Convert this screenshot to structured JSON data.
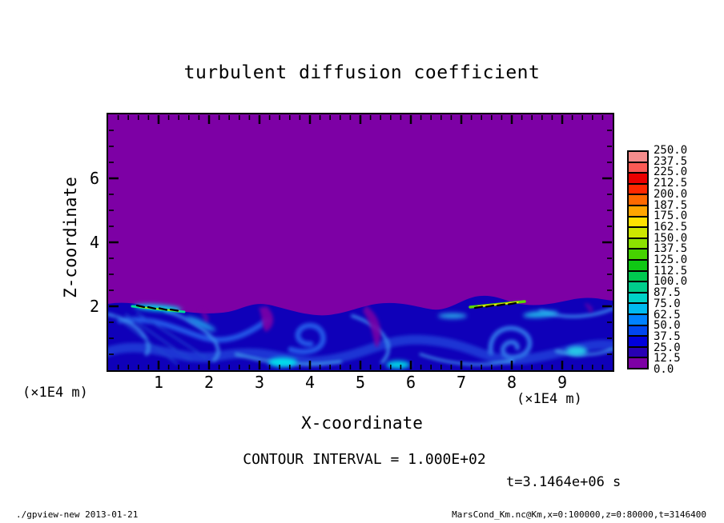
{
  "title": "turbulent diffusion coefficient",
  "chart_data": {
    "type": "heatmap",
    "title": "turbulent diffusion coefficient",
    "xlabel": "X-coordinate",
    "ylabel": "Z-coordinate",
    "x_units": "(×1E4 m)",
    "y_units": "(×1E4 m)",
    "xlim": [
      0,
      10
    ],
    "ylim": [
      0,
      8
    ],
    "x_major_ticks": [
      1,
      2,
      3,
      4,
      5,
      6,
      7,
      8,
      9
    ],
    "x_minor_step": 0.2,
    "y_major_ticks": [
      2,
      4,
      6
    ],
    "y_minor_step": 0.5,
    "grid": false,
    "contour_interval_label": "CONTOUR INTERVAL = 1.000E+02",
    "contour_interval": 100.0,
    "time_label": "t=3.1464e+06 s",
    "time_seconds": 3146400,
    "colorbar": {
      "levels": [
        "0.0",
        "12.5",
        "25.0",
        "37.5",
        "50.0",
        "62.5",
        "75.0",
        "87.5",
        "100.0",
        "112.5",
        "125.0",
        "137.5",
        "150.0",
        "162.5",
        "175.0",
        "187.5",
        "200.0",
        "212.5",
        "225.0",
        "237.5",
        "250.0"
      ],
      "colors": [
        "#7d00a5",
        "#2800b4",
        "#0000dc",
        "#0046f0",
        "#0082ff",
        "#00baf0",
        "#00d2c8",
        "#00cd8c",
        "#00c850",
        "#0fc814",
        "#46d200",
        "#8ce100",
        "#cde600",
        "#ffe100",
        "#ffa500",
        "#ff6900",
        "#ff2800",
        "#eb0000",
        "#fa5a55",
        "#f58c8c"
      ],
      "position": "right"
    },
    "field_colors": {
      "upper_region": "#7d00a5",
      "turbulent_base": "#0f00b9",
      "cyan_highlight": "#00d7e6"
    },
    "regions": [
      {
        "area": "z from 2 to 8 (x1E4 m), all x",
        "value_range": [
          0,
          12.5
        ],
        "description": "uniform low diffusion (purple band)"
      },
      {
        "area": "z from 0 to ~2 (x1E4 m), all x",
        "value_range": [
          12.5,
          100
        ],
        "description": "turbulent boundary layer with eddies and filaments (blue/cyan swirls)"
      },
      {
        "area": "near z=2 at x=1-2 and x=7.3-8.3",
        "value_range": [
          100,
          200
        ],
        "description": "localized maxima streaks (green/yellow with black contour dashes at interval 100)"
      }
    ]
  },
  "footer": {
    "left": "./gpview-new  2013-01-21",
    "right": "MarsCond_Km.nc@Km,x=0:100000,z=0:80000,t=3146400"
  }
}
